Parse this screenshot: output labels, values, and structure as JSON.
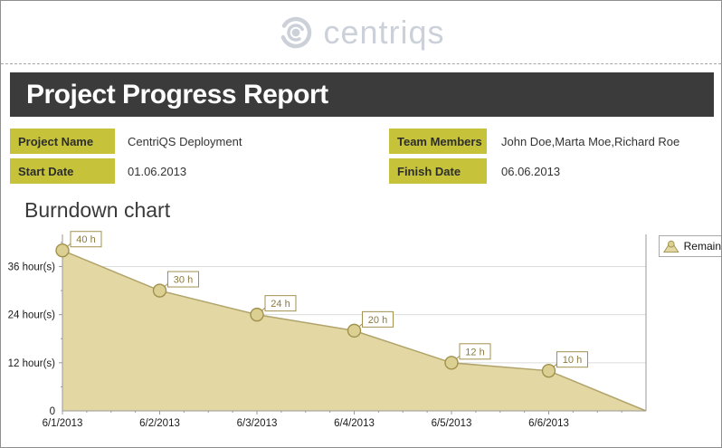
{
  "brand": {
    "logo_text": "centriqs"
  },
  "report": {
    "title": "Project Progress Report"
  },
  "fields": {
    "project_name": {
      "label": "Project Name",
      "value": "CentriQS Deployment"
    },
    "team_members": {
      "label": "Team Members",
      "value": "John Doe,Marta Moe,Richard Roe"
    },
    "start_date": {
      "label": "Start Date",
      "value": "01.06.2013"
    },
    "finish_date": {
      "label": "Finish Date",
      "value": "06.06.2013"
    }
  },
  "section": {
    "title": "Burndown chart"
  },
  "chart_data": {
    "type": "area",
    "title": "Burndown chart",
    "x": [
      "6/1/2013",
      "6/2/2013",
      "6/3/2013",
      "6/4/2013",
      "6/5/2013",
      "6/6/2013"
    ],
    "series": [
      {
        "name": "Remain",
        "values": [
          40,
          30,
          24,
          20,
          12,
          10
        ],
        "end_value": 0
      }
    ],
    "point_labels": [
      "40 h",
      "30 h",
      "24 h",
      "20 h",
      "12 h",
      "10 h"
    ],
    "y_ticks": [
      {
        "value": 0,
        "label": "0"
      },
      {
        "value": 12,
        "label": "12 hour(s)"
      },
      {
        "value": 24,
        "label": "24 hour(s)"
      },
      {
        "value": 36,
        "label": "36 hour(s)"
      }
    ],
    "ylim": [
      0,
      44
    ],
    "grid": true,
    "legend": {
      "label": "Remain",
      "position": "top-right"
    }
  },
  "theme": {
    "accent_yellow": "#c6c33a",
    "title_bar_bg": "#3b3b3b",
    "logo_gray": "#ccd1d9",
    "area_fill": "#e3d8a3",
    "area_line": "#b1a36a",
    "marker_fill": "#dbcf91",
    "marker_border": "#a2914e",
    "callout_text": "#8a7a3e",
    "grid_color": "#dcdcdc",
    "axis_color": "#9a9a9a",
    "border_gray": "#8f8f8f"
  }
}
